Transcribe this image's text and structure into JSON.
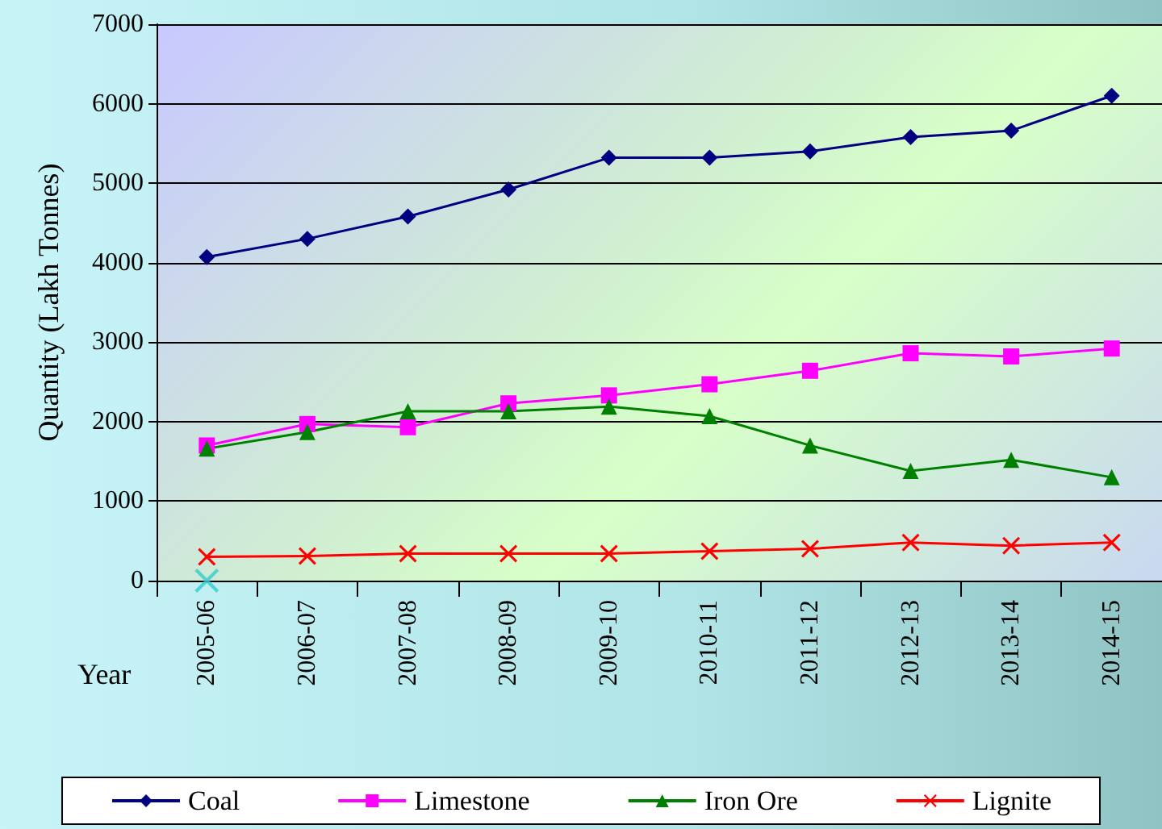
{
  "chart_data": {
    "type": "line",
    "xlabel": "Year",
    "ylabel": "Quantity (Lakh Tonnes)",
    "categories": [
      "2005-06",
      "2006-07",
      "2007-08",
      "2008-09",
      "2009-10",
      "2010-11",
      "2011-12",
      "2012-13",
      "2013-14",
      "2014-15"
    ],
    "series": [
      {
        "name": "Coal",
        "color": "#000080",
        "marker": "diamond",
        "values": [
          4070,
          4300,
          4580,
          4920,
          5320,
          5320,
          5400,
          5580,
          5660,
          6100
        ]
      },
      {
        "name": "Limestone",
        "color": "#ff00ff",
        "marker": "square",
        "values": [
          1700,
          1970,
          1930,
          2230,
          2330,
          2470,
          2640,
          2860,
          2820,
          2920
        ]
      },
      {
        "name": "Iron Ore",
        "color": "#008000",
        "marker": "triangle",
        "values": [
          1660,
          1870,
          2130,
          2130,
          2190,
          2070,
          1700,
          1380,
          1520,
          1300
        ]
      },
      {
        "name": "Lignite",
        "color": "#ff0000",
        "marker": "cross",
        "values": [
          300,
          310,
          340,
          340,
          340,
          370,
          400,
          480,
          440,
          480
        ]
      },
      {
        "type": "scatter",
        "color": "#33cccc",
        "marker": "cross",
        "values": [
          0,
          null,
          null,
          null,
          null,
          null,
          null,
          null,
          null,
          null
        ]
      }
    ],
    "ylim": [
      0,
      7000
    ],
    "yticks": [
      0,
      1000,
      2000,
      3000,
      4000,
      5000,
      6000,
      7000
    ],
    "grid": "y",
    "legend": "bottom",
    "line_style": "solid"
  }
}
